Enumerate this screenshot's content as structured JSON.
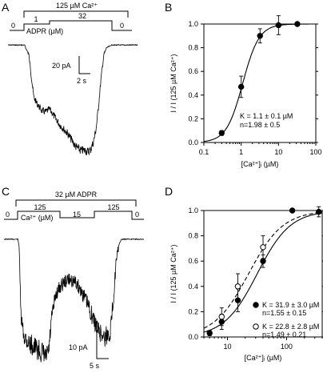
{
  "panels": {
    "A": {
      "letter": "A",
      "protocol_top": "125 µM Ca²⁺",
      "steps": [
        "0",
        "1",
        "32",
        "0"
      ],
      "unit_label": "ADPR (µM)",
      "scale_current": "20 pA",
      "scale_time": "2 s"
    },
    "B": {
      "letter": "B",
      "ylabel": "I / I (125 µM Ca²⁺)",
      "xlabel": "[Ca²⁺]ᵢ (µM)",
      "annotation": [
        "K = 1.1 ± 0.1 µM",
        "n=1.98 ± 0.5"
      ]
    },
    "C": {
      "letter": "C",
      "protocol_top": "32 µM ADPR",
      "steps": [
        "0",
        "125",
        "15",
        "125",
        "0"
      ],
      "unit_label": "Ca²⁺ (µM)",
      "scale_current": "10 pA",
      "scale_time": "5 s"
    },
    "D": {
      "letter": "D",
      "ylabel": "I / I (125 µM Ca²⁺)",
      "xlabel": "[Ca²⁺]ᵢ (µM)",
      "legend": [
        {
          "marker": "filled",
          "lines": [
            "K = 31.9 ± 3.0 µM",
            "n=1.55 ± 0.15"
          ]
        },
        {
          "marker": "open",
          "lines": [
            "K = 22.8 ± 2.8 µM",
            "n=1.49 ± 0.21"
          ]
        }
      ]
    }
  },
  "chart_data": [
    {
      "panel": "B",
      "type": "scatter",
      "x_scale": "log",
      "xlim": [
        0.1,
        100
      ],
      "ylim": [
        0.0,
        1.0
      ],
      "x_ticks": [
        "0.1",
        "1",
        "10",
        "100"
      ],
      "y_ticks": [
        "0.0",
        "0.2",
        "0.4",
        "0.6",
        "0.8",
        "1.0"
      ],
      "series": [
        {
          "marker": "filled",
          "points": [
            {
              "x": 0.3,
              "y": 0.08,
              "err": 0.02
            },
            {
              "x": 1.0,
              "y": 0.47,
              "err": 0.09
            },
            {
              "x": 3.2,
              "y": 0.9,
              "err": 0.06
            },
            {
              "x": 10,
              "y": 0.99,
              "err": 0.08
            },
            {
              "x": 32,
              "y": 1.0,
              "err": 0.0
            }
          ],
          "fit": {
            "K": 1.1,
            "n": 1.98,
            "style": "solid"
          }
        }
      ]
    },
    {
      "panel": "D",
      "type": "scatter",
      "x_scale": "log",
      "xlim": [
        4,
        400
      ],
      "ylim": [
        0.0,
        1.0
      ],
      "x_ticks": [
        "10",
        "100"
      ],
      "y_ticks": [
        "0.0",
        "0.2",
        "0.4",
        "0.6",
        "0.8",
        "1.0"
      ],
      "series": [
        {
          "marker": "filled",
          "points": [
            {
              "x": 5,
              "y": 0.03,
              "err": 0.02
            },
            {
              "x": 8,
              "y": 0.12,
              "err": 0.06
            },
            {
              "x": 15,
              "y": 0.29,
              "err": 0.09
            },
            {
              "x": 40,
              "y": 0.6,
              "err": 0.05
            },
            {
              "x": 125,
              "y": 1.0,
              "err": 0.0
            },
            {
              "x": 350,
              "y": 0.99,
              "err": 0.04
            }
          ],
          "fit": {
            "K": 31.9,
            "n": 1.55,
            "style": "solid"
          }
        },
        {
          "marker": "open",
          "points": [
            {
              "x": 8,
              "y": 0.16,
              "err": 0.07
            },
            {
              "x": 15,
              "y": 0.4,
              "err": 0.1
            },
            {
              "x": 40,
              "y": 0.71,
              "err": 0.09
            }
          ],
          "fit": {
            "K": 22.8,
            "n": 1.49,
            "style": "dashed"
          }
        }
      ]
    }
  ],
  "traces": {
    "A_points": [
      [
        0,
        0.08
      ],
      [
        0.13,
        0.08
      ],
      [
        0.135,
        0.1
      ],
      [
        0.16,
        0.14
      ],
      [
        0.18,
        0.3
      ],
      [
        0.2,
        0.45
      ],
      [
        0.23,
        0.5
      ],
      [
        0.26,
        0.54
      ],
      [
        0.29,
        0.55
      ],
      [
        0.32,
        0.53
      ],
      [
        0.35,
        0.57
      ],
      [
        0.4,
        0.64
      ],
      [
        0.46,
        0.7
      ],
      [
        0.52,
        0.79
      ],
      [
        0.56,
        0.82
      ],
      [
        0.58,
        0.82
      ],
      [
        0.6,
        0.82
      ],
      [
        0.62,
        0.83
      ],
      [
        0.64,
        0.81
      ],
      [
        0.66,
        0.76
      ],
      [
        0.68,
        0.67
      ],
      [
        0.7,
        0.5
      ],
      [
        0.72,
        0.3
      ],
      [
        0.74,
        0.15
      ],
      [
        0.76,
        0.1
      ],
      [
        0.78,
        0.09
      ],
      [
        0.8,
        0.08
      ],
      [
        1,
        0.08
      ]
    ],
    "C_points": [
      [
        0,
        0.08
      ],
      [
        0.1,
        0.08
      ],
      [
        0.11,
        0.15
      ],
      [
        0.12,
        0.6
      ],
      [
        0.14,
        0.72
      ],
      [
        0.18,
        0.78
      ],
      [
        0.24,
        0.82
      ],
      [
        0.28,
        0.85
      ],
      [
        0.3,
        0.88
      ],
      [
        0.32,
        0.83
      ],
      [
        0.34,
        0.62
      ],
      [
        0.37,
        0.45
      ],
      [
        0.4,
        0.4
      ],
      [
        0.44,
        0.36
      ],
      [
        0.48,
        0.35
      ],
      [
        0.52,
        0.38
      ],
      [
        0.56,
        0.44
      ],
      [
        0.6,
        0.52
      ],
      [
        0.64,
        0.62
      ],
      [
        0.68,
        0.7
      ],
      [
        0.72,
        0.74
      ],
      [
        0.76,
        0.7
      ],
      [
        0.78,
        0.5
      ],
      [
        0.8,
        0.25
      ],
      [
        0.82,
        0.12
      ],
      [
        0.84,
        0.08
      ],
      [
        1,
        0.08
      ]
    ]
  }
}
